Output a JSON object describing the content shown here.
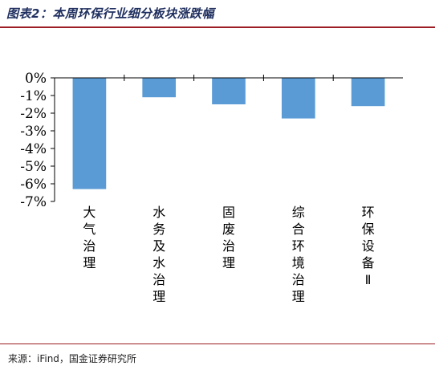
{
  "title": "图表2：本周环保行业细分板块涨跌幅",
  "source": "来源：iFind，国金证券研究所",
  "chart_data": {
    "type": "bar",
    "categories": [
      "大气治理",
      "水务及水治理",
      "固废治理",
      "综合环境治理",
      "环保设备Ⅱ"
    ],
    "values": [
      -6.3,
      -1.1,
      -1.5,
      -2.3,
      -1.6
    ],
    "ylim": [
      -7,
      0
    ],
    "yticks": [
      "0%",
      "-1%",
      "-2%",
      "-3%",
      "-4%",
      "-5%",
      "-6%",
      "-7%"
    ],
    "xlabel": "",
    "ylabel": "",
    "grid": false,
    "bar_color": "#5b9bd5"
  }
}
